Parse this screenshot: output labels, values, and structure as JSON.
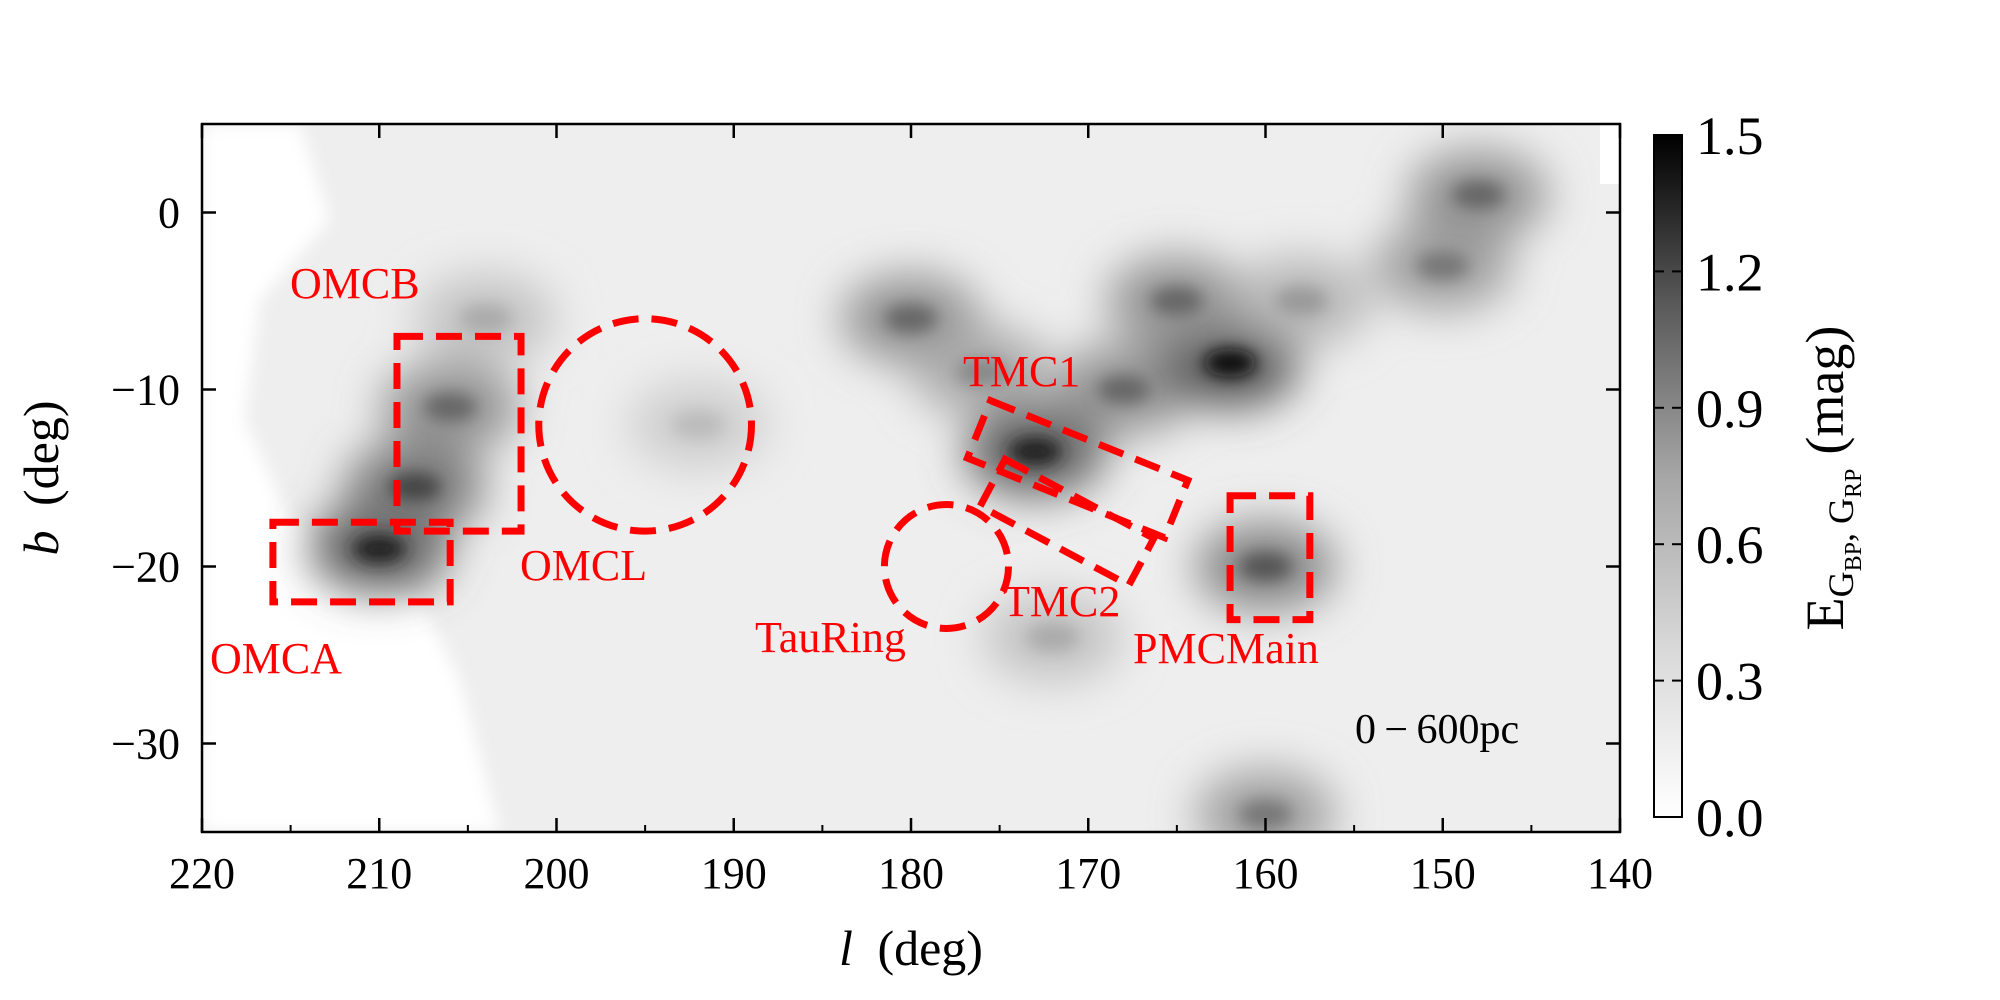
{
  "chart_data": {
    "type": "heatmap",
    "xlabel_symbol": "l",
    "xlabel_unit": "(deg)",
    "ylabel_symbol": "b",
    "ylabel_unit": "(deg)",
    "xlim": [
      220,
      140
    ],
    "ylim": [
      -35,
      5
    ],
    "x_ticks": [
      220,
      210,
      200,
      190,
      180,
      170,
      160,
      150,
      140
    ],
    "x_tick_labels": [
      "220",
      "210",
      "200",
      "190",
      "180",
      "170",
      "160",
      "150",
      "140"
    ],
    "y_ticks": [
      0,
      -10,
      -20,
      -30
    ],
    "y_tick_labels": [
      "0",
      "−10",
      "−20",
      "−30"
    ],
    "distance_range_label": "0 − 600pc",
    "colormap": "Greys",
    "colorbar": {
      "min": 0.0,
      "max": 1.5,
      "ticks": [
        0.0,
        0.3,
        0.6,
        0.9,
        1.2,
        1.5
      ],
      "tick_labels": [
        "0.0",
        "0.3",
        "0.6",
        "0.9",
        "1.2",
        "1.5"
      ],
      "label_main": "E",
      "label_sub1": "G",
      "label_subsub1": "BP",
      "label_sep": ", ",
      "label_sub2": "G",
      "label_subsub2": "RP",
      "label_unit": "(mag)"
    },
    "regions": [
      {
        "name": "OMCB",
        "shape": "rect",
        "l_min": 202,
        "l_max": 209,
        "b_min": -18,
        "b_max": -7
      },
      {
        "name": "OMCA",
        "shape": "rect",
        "l_min": 206,
        "l_max": 216,
        "b_min": -22,
        "b_max": -17.5
      },
      {
        "name": "OMCL",
        "shape": "circle",
        "l_center": 195,
        "b_center": -12,
        "radius_deg": 6
      },
      {
        "name": "TMC1",
        "shape": "rotated-rect",
        "l_center": 170.6,
        "b_center": -14.5,
        "length_deg": 12,
        "width_deg": 3.5,
        "angle_deg": -22
      },
      {
        "name": "TMC2",
        "shape": "rotated-rect",
        "l_center": 171.2,
        "b_center": -17.5,
        "length_deg": 9.5,
        "width_deg": 3,
        "angle_deg": -28
      },
      {
        "name": "TauRing",
        "shape": "circle",
        "l_center": 178,
        "b_center": -20,
        "radius_deg": 3.5
      },
      {
        "name": "PMCMain",
        "shape": "rect",
        "l_min": 157.5,
        "l_max": 162,
        "b_min": -23,
        "b_max": -16
      }
    ],
    "extinction_features": [
      {
        "l": 210,
        "b": -19,
        "value": 1.3
      },
      {
        "l": 208,
        "b": -15.5,
        "value": 1.1
      },
      {
        "l": 206,
        "b": -11,
        "value": 0.9
      },
      {
        "l": 204,
        "b": -6,
        "value": 0.5
      },
      {
        "l": 192,
        "b": -12,
        "value": 0.4
      },
      {
        "l": 180,
        "b": -6,
        "value": 0.9
      },
      {
        "l": 176,
        "b": -9,
        "value": 0.7
      },
      {
        "l": 173,
        "b": -13.5,
        "value": 1.3
      },
      {
        "l": 168,
        "b": -10,
        "value": 0.9
      },
      {
        "l": 162,
        "b": -8.5,
        "value": 1.4
      },
      {
        "l": 165,
        "b": -5,
        "value": 0.9
      },
      {
        "l": 158,
        "b": -5,
        "value": 0.6
      },
      {
        "l": 150,
        "b": -3,
        "value": 0.8
      },
      {
        "l": 148,
        "b": 1,
        "value": 0.9
      },
      {
        "l": 160,
        "b": -20,
        "value": 1.0
      },
      {
        "l": 172,
        "b": -24,
        "value": 0.5
      },
      {
        "l": 160,
        "b": -34,
        "value": 0.8
      }
    ]
  }
}
